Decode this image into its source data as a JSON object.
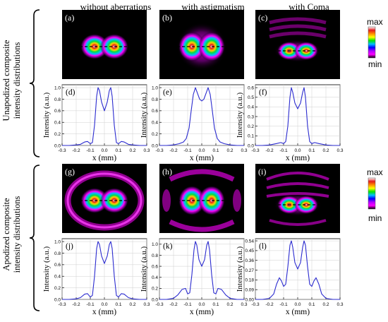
{
  "column_titles": [
    "without aberrations",
    "with astigmatism",
    "with Coma"
  ],
  "row_labels": {
    "top": [
      "Unapodized composite",
      "intensity distributions"
    ],
    "bottom": [
      "Apodized composite",
      "intensity distributions"
    ]
  },
  "colorbar": {
    "max_label": "max",
    "min_label": "min",
    "colors": [
      "#ffffff",
      "#e31a1c",
      "#ff8c00",
      "#ffff00",
      "#00e600",
      "#00bfff",
      "#0000ff",
      "#b000ff",
      "#ff00ff",
      "#000000"
    ]
  },
  "map_panels": [
    {
      "label": "(a)",
      "type": "none"
    },
    {
      "label": "(b)",
      "type": "astig"
    },
    {
      "label": "(c)",
      "type": "coma"
    },
    {
      "label": "(g)",
      "type": "none"
    },
    {
      "label": "(h)",
      "type": "astig"
    },
    {
      "label": "(i)",
      "type": "coma"
    }
  ],
  "chart_data": [
    {
      "panel": "(d)",
      "type": "line",
      "xlabel": "x (mm)",
      "ylabel": "Intensity (a.u.)",
      "xlim": [
        -0.3,
        0.3
      ],
      "ylim": [
        0,
        1.05
      ],
      "xticks": [
        "-0.3",
        "-0.2",
        "-0.1",
        "0.0",
        "0.1",
        "0.2",
        "0.3"
      ],
      "yticks": [
        "0.0",
        "0.2",
        "0.4",
        "0.6",
        "0.8",
        "1.0"
      ],
      "ytick_values": [
        0,
        0.2,
        0.4,
        0.6,
        0.8,
        1.0
      ],
      "x": [
        -0.3,
        -0.25,
        -0.2,
        -0.17,
        -0.14,
        -0.12,
        -0.1,
        -0.085,
        -0.07,
        -0.055,
        -0.045,
        -0.035,
        -0.02,
        0,
        0.02,
        0.035,
        0.045,
        0.055,
        0.07,
        0.085,
        0.1,
        0.12,
        0.14,
        0.17,
        0.2,
        0.25,
        0.3
      ],
      "y": [
        0,
        0,
        0.01,
        0.02,
        0.06,
        0.07,
        0.03,
        0.05,
        0.35,
        0.85,
        1.0,
        0.95,
        0.75,
        0.6,
        0.75,
        0.95,
        1.0,
        0.85,
        0.35,
        0.05,
        0.03,
        0.07,
        0.06,
        0.02,
        0.01,
        0,
        0
      ]
    },
    {
      "panel": "(e)",
      "type": "line",
      "xlabel": "x (mm)",
      "ylabel": "Intensity (a.u.)",
      "xlim": [
        -0.3,
        0.3
      ],
      "ylim": [
        0,
        1.05
      ],
      "xticks": [
        "-0.3",
        "-0.2",
        "-0.1",
        "0.0",
        "0.1",
        "0.2",
        "0.3"
      ],
      "yticks": [
        "0.0",
        "0.2",
        "0.4",
        "0.6",
        "0.8",
        "1.0"
      ],
      "ytick_values": [
        0,
        0.2,
        0.4,
        0.6,
        0.8,
        1.0
      ],
      "x": [
        -0.3,
        -0.25,
        -0.2,
        -0.16,
        -0.13,
        -0.11,
        -0.09,
        -0.075,
        -0.06,
        -0.045,
        -0.03,
        -0.015,
        0,
        0.015,
        0.03,
        0.045,
        0.06,
        0.075,
        0.09,
        0.11,
        0.13,
        0.16,
        0.2,
        0.25,
        0.3
      ],
      "y": [
        0,
        0,
        0.01,
        0.03,
        0.06,
        0.12,
        0.3,
        0.6,
        0.88,
        1.0,
        0.9,
        0.8,
        0.77,
        0.8,
        0.9,
        1.0,
        0.88,
        0.6,
        0.3,
        0.12,
        0.06,
        0.03,
        0.01,
        0,
        0
      ]
    },
    {
      "panel": "(f)",
      "type": "line",
      "xlabel": "x (mm)",
      "ylabel": "Intensity (a.u.)",
      "xlim": [
        -0.3,
        0.3
      ],
      "ylim": [
        0,
        0.63
      ],
      "xticks": [
        "-0.3",
        "-0.2",
        "-0.1",
        "0.0",
        "0.1",
        "0.2",
        "0.3"
      ],
      "yticks": [
        "0.0",
        "0.1",
        "0.2",
        "0.3",
        "0.4",
        "0.5",
        "0.6"
      ],
      "ytick_values": [
        0,
        0.1,
        0.2,
        0.3,
        0.4,
        0.5,
        0.6
      ],
      "x": [
        -0.3,
        -0.25,
        -0.2,
        -0.15,
        -0.12,
        -0.1,
        -0.085,
        -0.07,
        -0.055,
        -0.045,
        -0.035,
        -0.02,
        0,
        0.02,
        0.035,
        0.045,
        0.055,
        0.07,
        0.085,
        0.1,
        0.12,
        0.15,
        0.2,
        0.25,
        0.3
      ],
      "y": [
        0,
        0,
        0.005,
        0.02,
        0.03,
        0.02,
        0.04,
        0.2,
        0.5,
        0.6,
        0.55,
        0.44,
        0.38,
        0.44,
        0.55,
        0.6,
        0.5,
        0.2,
        0.04,
        0.02,
        0.03,
        0.02,
        0.005,
        0,
        0
      ]
    },
    {
      "panel": "(j)",
      "type": "line",
      "xlabel": "x (mm)",
      "ylabel": "Intensity (a.u.)",
      "xlim": [
        -0.3,
        0.3
      ],
      "ylim": [
        0,
        1.05
      ],
      "xticks": [
        "-0.3",
        "-0.2",
        "-0.1",
        "0.0",
        "0.1",
        "0.2",
        "0.3"
      ],
      "yticks": [
        "0.0",
        "0.2",
        "0.4",
        "0.6",
        "0.8",
        "1.0"
      ],
      "ytick_values": [
        0,
        0.2,
        0.4,
        0.6,
        0.8,
        1.0
      ],
      "x": [
        -0.3,
        -0.25,
        -0.2,
        -0.17,
        -0.14,
        -0.12,
        -0.1,
        -0.085,
        -0.07,
        -0.055,
        -0.045,
        -0.035,
        -0.02,
        0,
        0.02,
        0.035,
        0.045,
        0.055,
        0.07,
        0.085,
        0.1,
        0.12,
        0.14,
        0.17,
        0.2,
        0.25,
        0.3
      ],
      "y": [
        0,
        0,
        0.01,
        0.03,
        0.09,
        0.1,
        0.04,
        0.07,
        0.4,
        0.88,
        1.0,
        0.95,
        0.75,
        0.62,
        0.75,
        0.95,
        1.0,
        0.88,
        0.4,
        0.07,
        0.04,
        0.1,
        0.09,
        0.03,
        0.01,
        0,
        0
      ]
    },
    {
      "panel": "(k)",
      "type": "line",
      "xlabel": "x (mm)",
      "ylabel": "Intensity (a.u.)",
      "xlim": [
        -0.3,
        0.3
      ],
      "ylim": [
        0,
        1.1
      ],
      "xticks": [
        "-0.3",
        "-0.2",
        "-0.1",
        "0.0",
        "0.1",
        "0.2",
        "0.3"
      ],
      "yticks": [
        "0.0",
        "0.2",
        "0.4",
        "0.6",
        "0.8",
        "1.0"
      ],
      "ytick_values": [
        0,
        0.2,
        0.4,
        0.6,
        0.8,
        1.0
      ],
      "x": [
        -0.3,
        -0.25,
        -0.2,
        -0.17,
        -0.14,
        -0.115,
        -0.1,
        -0.085,
        -0.07,
        -0.055,
        -0.045,
        -0.035,
        -0.02,
        0,
        0.02,
        0.035,
        0.045,
        0.055,
        0.07,
        0.085,
        0.1,
        0.115,
        0.14,
        0.17,
        0.2,
        0.25,
        0.3
      ],
      "y": [
        0,
        0,
        0.02,
        0.08,
        0.18,
        0.2,
        0.1,
        0.12,
        0.45,
        0.9,
        1.05,
        0.98,
        0.72,
        0.6,
        0.72,
        0.98,
        1.05,
        0.9,
        0.45,
        0.12,
        0.1,
        0.2,
        0.18,
        0.08,
        0.02,
        0,
        0
      ]
    },
    {
      "panel": "(l)",
      "type": "line",
      "xlabel": "x (mm)",
      "ylabel": "Intensity (a.u.)",
      "xlim": [
        -0.3,
        0.3
      ],
      "ylim": [
        0,
        0.56
      ],
      "xticks": [
        "-0.3",
        "-0.2",
        "-0.1",
        "0.0",
        "0.1",
        "0.2",
        "0.3"
      ],
      "yticks": [
        "0.00",
        "0.09",
        "0.18",
        "0.27",
        "0.36",
        "0.45",
        "0.54"
      ],
      "ytick_values": [
        0,
        0.09,
        0.18,
        0.27,
        0.36,
        0.45,
        0.54
      ],
      "x": [
        -0.3,
        -0.25,
        -0.2,
        -0.17,
        -0.15,
        -0.13,
        -0.115,
        -0.1,
        -0.085,
        -0.07,
        -0.055,
        -0.045,
        -0.035,
        -0.02,
        0,
        0.02,
        0.035,
        0.045,
        0.055,
        0.07,
        0.085,
        0.1,
        0.115,
        0.13,
        0.15,
        0.17,
        0.2,
        0.25,
        0.3
      ],
      "y": [
        0,
        0,
        0.01,
        0.05,
        0.14,
        0.2,
        0.17,
        0.12,
        0.14,
        0.3,
        0.5,
        0.54,
        0.48,
        0.34,
        0.28,
        0.34,
        0.48,
        0.54,
        0.5,
        0.3,
        0.14,
        0.12,
        0.17,
        0.2,
        0.14,
        0.05,
        0.01,
        0,
        0
      ]
    }
  ]
}
